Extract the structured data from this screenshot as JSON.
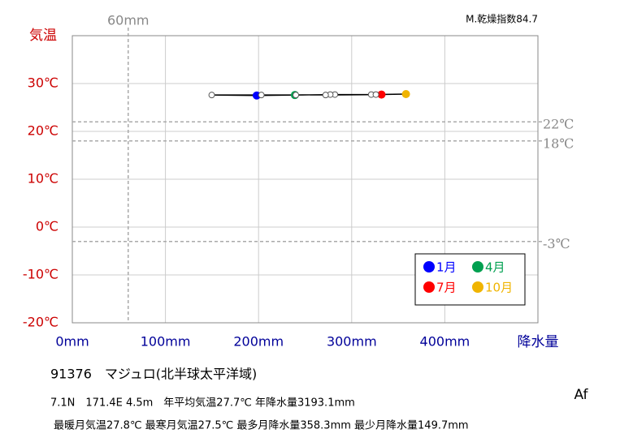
{
  "chart_data": {
    "type": "climograph",
    "y_label": "気温",
    "x_label": "降水量",
    "dryness_index": "M.乾燥指数84.7",
    "station": "91376　マジュロ(北半球太平洋域)",
    "info_line1": "7.1N　171.4E 4.5m　年平均気温27.7℃ 年降水量3193.1mm",
    "info_line2": "最暖月気温27.8℃ 最寒月気温27.5℃ 最多月降水量358.3mm 最少月降水量149.7mm",
    "climate_class": "Af",
    "xlim": [
      0,
      500
    ],
    "ylim": [
      -20,
      40
    ],
    "xticks": [
      {
        "value": 0,
        "label": "0mm"
      },
      {
        "value": 100,
        "label": "100mm"
      },
      {
        "value": 200,
        "label": "200mm"
      },
      {
        "value": 300,
        "label": "300mm"
      },
      {
        "value": 400,
        "label": "400mm"
      }
    ],
    "yticks": [
      {
        "value": -20,
        "label": "-20℃"
      },
      {
        "value": -10,
        "label": "-10℃"
      },
      {
        "value": 0,
        "label": "0℃"
      },
      {
        "value": 10,
        "label": "10℃"
      },
      {
        "value": 20,
        "label": "20℃"
      },
      {
        "value": 30,
        "label": "30℃"
      }
    ],
    "grid": true,
    "reference_lines": [
      {
        "axis": "x",
        "value": 60,
        "label": "60mm"
      },
      {
        "axis": "y",
        "value": 22,
        "label": "22℃"
      },
      {
        "axis": "y",
        "value": 18,
        "label": "18℃"
      },
      {
        "axis": "y",
        "value": -3,
        "label": "-3℃"
      }
    ],
    "series": [
      {
        "x": [
          198,
          149.7,
          203,
          239,
          282,
          277,
          332,
          272,
          321,
          358.3,
          326,
          240
        ],
        "values": [
          27.5,
          27.6,
          27.6,
          27.6,
          27.7,
          27.7,
          27.7,
          27.6,
          27.7,
          27.8,
          27.7,
          27.6
        ],
        "color": "#000000",
        "point_colors": [
          "#0000ff",
          "#ffffff",
          "#ffffff",
          "#00a050",
          "#ffffff",
          "#ffffff",
          "#ff0000",
          "#ffffff",
          "#ffffff",
          "#f0b400",
          "#ffffff",
          "#ffffff"
        ]
      }
    ],
    "legend": [
      {
        "name": "1月",
        "color": "#0000ff"
      },
      {
        "name": "4月",
        "color": "#00a050"
      },
      {
        "name": "7月",
        "color": "#ff0000"
      },
      {
        "name": "10月",
        "color": "#f0b400"
      }
    ]
  }
}
